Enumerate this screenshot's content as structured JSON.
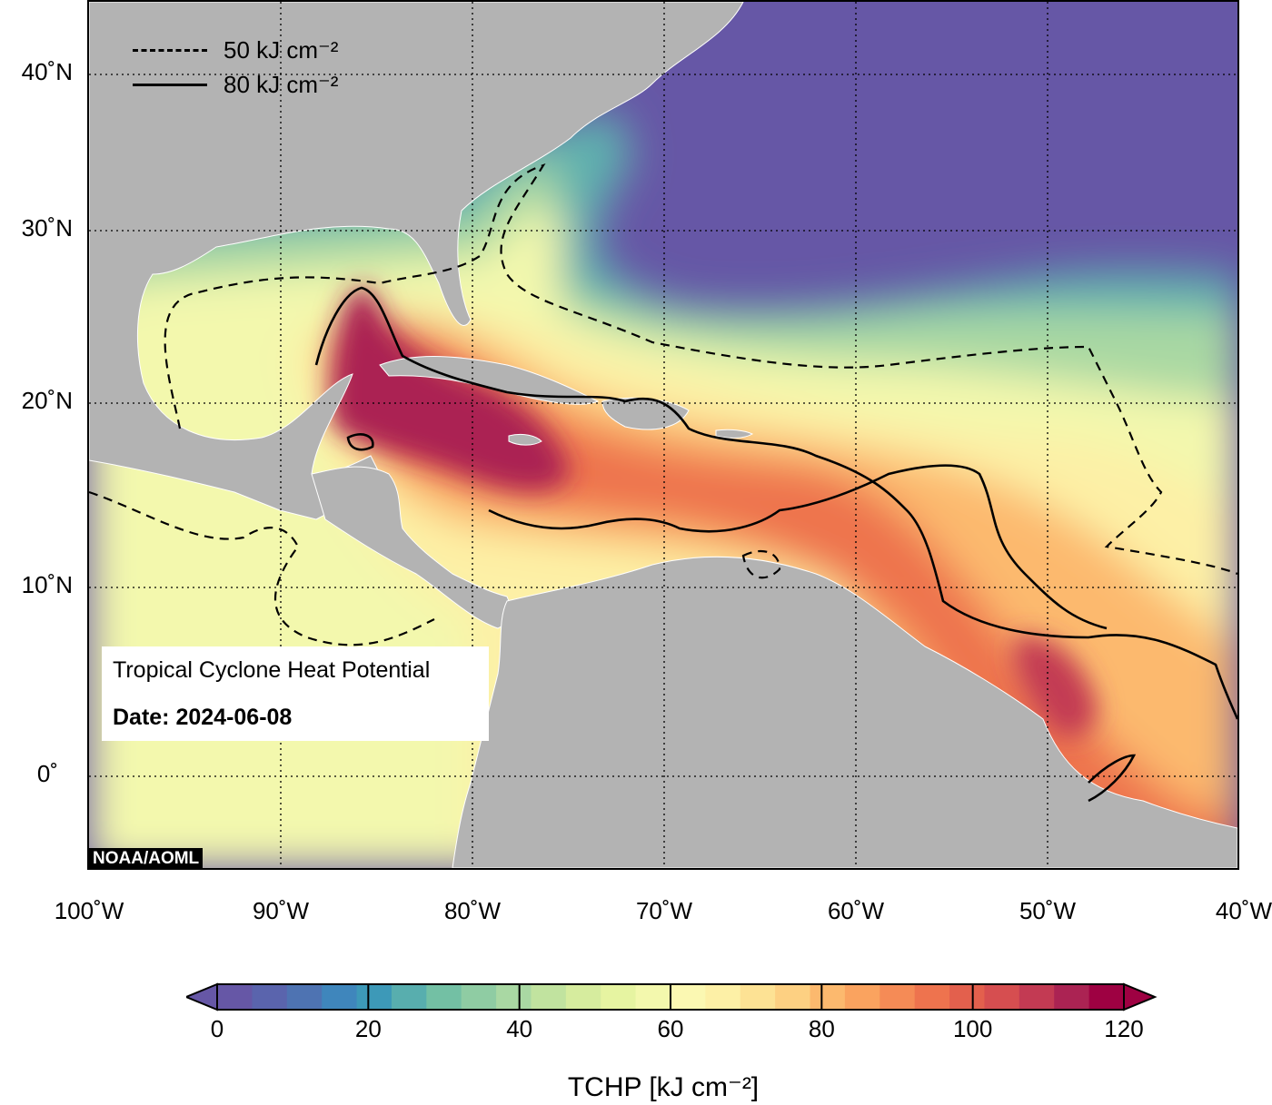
{
  "map": {
    "title": "Tropical Cyclone Heat Potential",
    "date_label": "Date: 2024-06-08",
    "credit": "NOAA/AOML",
    "lat_ticks": [
      "40˚N",
      "30˚N",
      "20˚N",
      "10˚N",
      "0˚"
    ],
    "lon_ticks": [
      "100˚W",
      "90˚W",
      "80˚W",
      "70˚W",
      "60˚W",
      "50˚W",
      "40˚W"
    ],
    "extent": {
      "lon": [
        -100,
        -40
      ],
      "lat": [
        -5,
        45
      ]
    },
    "contour_legend": [
      {
        "style": "dashed",
        "label": "50 kJ cm⁻²"
      },
      {
        "style": "solid",
        "label": "80 kJ cm⁻²"
      }
    ]
  },
  "colorbar": {
    "title": "TCHP [kJ cm⁻²]",
    "ticks": [
      "0",
      "20",
      "40",
      "60",
      "80",
      "100",
      "120"
    ],
    "min": 0,
    "max": 120,
    "colors": [
      "#6657a6",
      "#5a64ad",
      "#4e73b2",
      "#3f86bc",
      "#3d99b8",
      "#58aeae",
      "#73c0a4",
      "#8fcca3",
      "#a9d8a3",
      "#c1e39f",
      "#d6ec9e",
      "#e6f4a1",
      "#f3f8ad",
      "#fbf8b2",
      "#fdf0a6",
      "#fde294",
      "#fdd082",
      "#fcb96e",
      "#faa35f",
      "#f58b56",
      "#ee734e",
      "#e3604d",
      "#d64e50",
      "#c33a53",
      "#ab2353",
      "#9e0142"
    ],
    "under_color": "#6657a6",
    "over_color": "#9e0142"
  },
  "colors": {
    "land": "#b3b3b3",
    "deep_ocean": "#6657a6"
  }
}
